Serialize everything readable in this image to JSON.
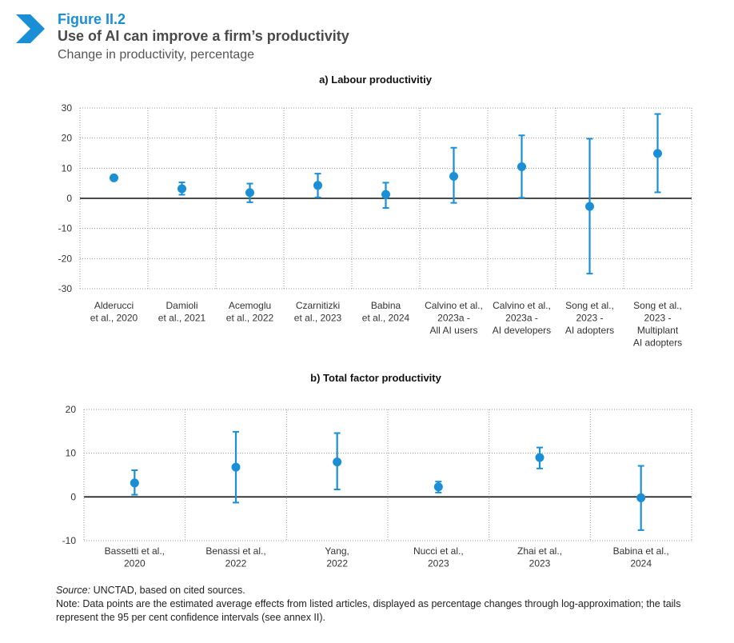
{
  "figure": {
    "label": "Figure II.2",
    "title": "Use of AI can improve a firm’s productivity",
    "subtitle": "Change in productivity, percentage",
    "accent_color": "#1a8fd6",
    "icon": "chevron-right-icon"
  },
  "chart_data": [
    {
      "type": "scatter",
      "title": "a) Labour productivitiy",
      "ylim": [
        -30,
        30
      ],
      "yticks": [
        "30",
        "20",
        "10",
        "0",
        "-10",
        "-20",
        "-30"
      ],
      "grid": true,
      "point_color": "#1a8fd6",
      "categories": [
        [
          "Alderucci",
          "et al., 2020"
        ],
        [
          "Damioli",
          "et al., 2021"
        ],
        [
          "Acemoglu",
          "et al., 2022"
        ],
        [
          "Czarnitizki",
          "et al., 2023"
        ],
        [
          "Babina",
          "et al., 2024"
        ],
        [
          "Calvino et al.,",
          "2023a -",
          "All AI users"
        ],
        [
          "Calvino et al.,",
          "2023a -",
          "AI developers"
        ],
        [
          "Song et al.,",
          "2023 -",
          "AI adopters"
        ],
        [
          "Song et al.,",
          "2023 -",
          "Multiplant",
          "AI adopters"
        ]
      ],
      "values": [
        6.8,
        3.2,
        1.9,
        4.3,
        1.3,
        7.3,
        10.5,
        -2.7,
        14.9
      ],
      "ci_low": [
        null,
        1.2,
        -1.3,
        0.3,
        -3.2,
        -1.5,
        0.2,
        -25.0,
        2.0
      ],
      "ci_high": [
        null,
        5.3,
        4.9,
        8.2,
        5.2,
        16.8,
        20.9,
        19.8,
        28.0
      ]
    },
    {
      "type": "scatter",
      "title": "b) Total factor productivity",
      "ylim": [
        -10,
        20
      ],
      "yticks": [
        "20",
        "10",
        "0",
        "-10"
      ],
      "grid": true,
      "point_color": "#1a8fd6",
      "categories": [
        [
          "Bassetti et al.,",
          "2020"
        ],
        [
          "Benassi et al.,",
          "2022"
        ],
        [
          "Yang,",
          "2022"
        ],
        [
          "Nucci et al.,",
          "2023"
        ],
        [
          "Zhai et al.,",
          "2023"
        ],
        [
          "Babina et al.,",
          "2024"
        ]
      ],
      "values": [
        3.2,
        6.8,
        8.0,
        2.3,
        9.0,
        -0.2
      ],
      "ci_low": [
        0.5,
        -1.3,
        1.7,
        1.0,
        6.5,
        -7.6
      ],
      "ci_high": [
        6.1,
        14.9,
        14.6,
        3.5,
        11.3,
        7.1
      ]
    }
  ],
  "footer": {
    "source_label": "Source:",
    "source_text": "UNCTAD, based on cited sources.",
    "note": "Note: Data points are the estimated average effects from listed articles, displayed as percentage changes through log-approximation; the tails represent the 95 per cent confidence intervals (see annex II)."
  }
}
